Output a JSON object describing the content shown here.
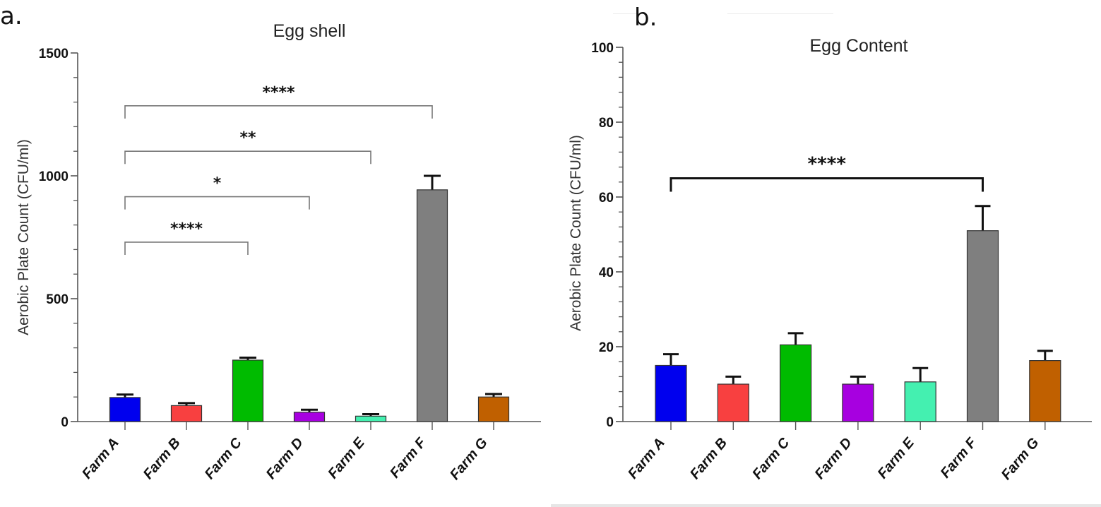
{
  "figure": {
    "panels": [
      "a.",
      "b."
    ]
  },
  "chart_data": [
    {
      "type": "bar",
      "panel_label": "a.",
      "title": "Egg shell",
      "xlabel": "",
      "ylabel": "Aerobic Plate Count (CFU/ml)",
      "ylim": [
        0,
        1500
      ],
      "y_major_ticks": [
        0,
        500,
        1000,
        1500
      ],
      "y_minor_step": 100,
      "grid": false,
      "categories": [
        "Farm A",
        "Farm B",
        "Farm C",
        "Farm D",
        "Farm E",
        "Farm F",
        "Farm G"
      ],
      "values": [
        98,
        65,
        250,
        38,
        22,
        943,
        100
      ],
      "error_upper": [
        110,
        75,
        260,
        48,
        30,
        1000,
        112
      ],
      "colors": [
        "#0000ee",
        "#f84040",
        "#00bb00",
        "#a700e0",
        "#44f0b0",
        "#7f7f7f",
        "#c06000"
      ],
      "significance": [
        {
          "from": "Farm A",
          "to": "Farm C",
          "label": "****",
          "level": 730
        },
        {
          "from": "Farm A",
          "to": "Farm D",
          "label": "*",
          "level": 915
        },
        {
          "from": "Farm A",
          "to": "Farm E",
          "label": "**",
          "level": 1100
        },
        {
          "from": "Farm A",
          "to": "Farm F",
          "label": "****",
          "level": 1285
        }
      ],
      "bracket_color": "#777777"
    },
    {
      "type": "bar",
      "panel_label": "b.",
      "title": "Egg Content",
      "xlabel": "",
      "ylabel": "Aerobic Plate Count (CFU/ml)",
      "ylim": [
        0,
        100
      ],
      "y_major_ticks": [
        0,
        20,
        40,
        60,
        80,
        100
      ],
      "y_minor_step": 4,
      "grid": false,
      "categories": [
        "Farm A",
        "Farm B",
        "Farm C",
        "Farm D",
        "Farm E",
        "Farm F",
        "Farm G"
      ],
      "values": [
        15,
        10,
        20.5,
        10,
        10.6,
        51,
        16.3
      ],
      "error_upper": [
        18,
        12,
        23.6,
        12,
        14.3,
        57.6,
        18.9
      ],
      "colors": [
        "#0000ee",
        "#f84040",
        "#00bb00",
        "#a700e0",
        "#44f0b0",
        "#7f7f7f",
        "#c06000"
      ],
      "significance": [
        {
          "from": "Farm A",
          "to": "Farm F",
          "label": "****",
          "level": 65
        }
      ],
      "bracket_color": "#111111"
    }
  ]
}
